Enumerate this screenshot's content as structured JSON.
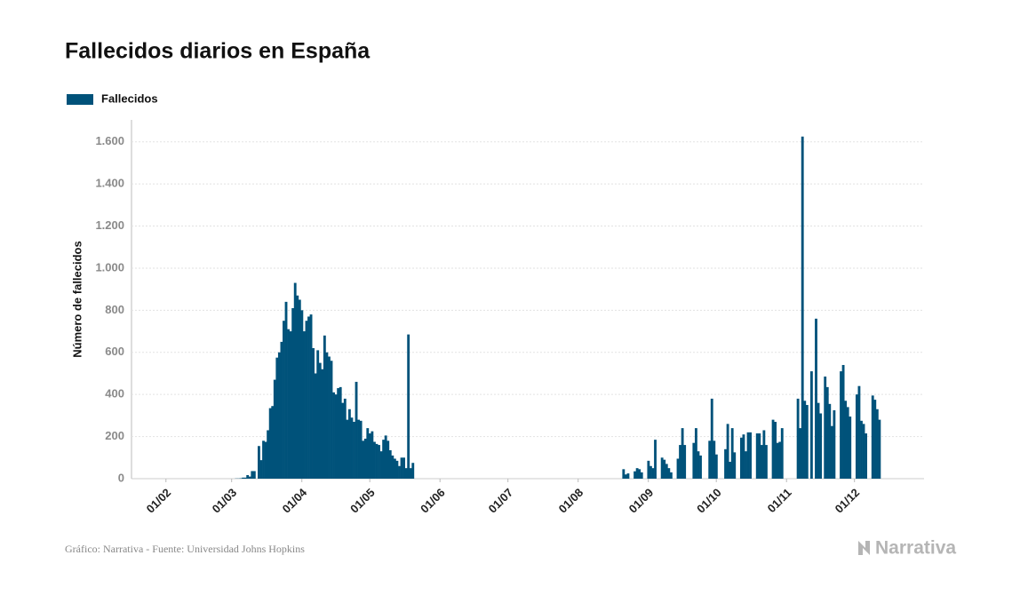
{
  "chart_data": {
    "type": "bar",
    "title": "Fallecidos diarios en España",
    "y_label": "Número de fallecidos",
    "source": "Gráfico: Narrativa - Fuente: Universidad Johns Hopkins",
    "brand": "Narrativa",
    "legend_position": "top-left",
    "grid": true,
    "ylim": [
      0,
      1700
    ],
    "yticks": [
      0,
      200,
      400,
      600,
      800,
      {
        "value": 1000,
        "label": "1.000"
      },
      {
        "value": 1200,
        "label": "1.200"
      },
      {
        "value": 1400,
        "label": "1.400"
      },
      {
        "value": 1600,
        "label": "1.600"
      }
    ],
    "categories": [
      null,
      null,
      null,
      null,
      null,
      null,
      null,
      null,
      null,
      null,
      "01/02",
      null,
      null,
      null,
      null,
      null,
      null,
      null,
      null,
      null,
      null,
      null,
      null,
      null,
      null,
      null,
      null,
      null,
      null,
      null,
      null,
      null,
      null,
      null,
      null,
      null,
      null,
      null,
      null,
      "01/03",
      null,
      null,
      null,
      null,
      null,
      null,
      null,
      null,
      null,
      null,
      null,
      null,
      null,
      null,
      null,
      null,
      null,
      null,
      null,
      null,
      null,
      null,
      null,
      null,
      null,
      null,
      null,
      null,
      null,
      null,
      "01/04",
      null,
      null,
      null,
      null,
      null,
      null,
      null,
      null,
      null,
      null,
      null,
      null,
      null,
      null,
      null,
      null,
      null,
      null,
      null,
      null,
      null,
      null,
      null,
      null,
      null,
      null,
      null,
      null,
      null,
      "01/05",
      null,
      null,
      null,
      null,
      null,
      null,
      null,
      null,
      null,
      null,
      null,
      null,
      null,
      null,
      null,
      null,
      null,
      null,
      null,
      null,
      null,
      null,
      null,
      null,
      null,
      null,
      null,
      null,
      null,
      null,
      "01/06",
      null,
      null,
      null,
      null,
      null,
      null,
      null,
      null,
      null,
      null,
      null,
      null,
      null,
      null,
      null,
      null,
      null,
      null,
      null,
      null,
      null,
      null,
      null,
      null,
      null,
      null,
      null,
      null,
      null,
      "01/07",
      null,
      null,
      null,
      null,
      null,
      null,
      null,
      null,
      null,
      null,
      null,
      null,
      null,
      null,
      null,
      null,
      null,
      null,
      null,
      null,
      null,
      null,
      null,
      null,
      null,
      null,
      null,
      null,
      null,
      null,
      "01/08",
      null,
      null,
      null,
      null,
      null,
      null,
      null,
      null,
      null,
      null,
      null,
      null,
      null,
      null,
      null,
      null,
      null,
      null,
      null,
      null,
      null,
      null,
      null,
      null,
      null,
      null,
      null,
      null,
      null,
      null,
      "01/09",
      null,
      null,
      null,
      null,
      null,
      null,
      null,
      null,
      null,
      null,
      null,
      null,
      null,
      null,
      null,
      null,
      null,
      null,
      null,
      null,
      null,
      null,
      null,
      null,
      null,
      null,
      null,
      null,
      null,
      "01/10",
      null,
      null,
      null,
      null,
      null,
      null,
      null,
      null,
      null,
      null,
      null,
      null,
      null,
      null,
      null,
      null,
      null,
      null,
      null,
      null,
      null,
      null,
      null,
      null,
      null,
      null,
      null,
      null,
      null,
      null,
      "01/11",
      null,
      null,
      null,
      null,
      null,
      null,
      null,
      null,
      null,
      null,
      null,
      null,
      null,
      null,
      null,
      null,
      null,
      null,
      null,
      null,
      null,
      null,
      null,
      null,
      null,
      null,
      null,
      null,
      null,
      "01/12",
      null,
      null,
      null,
      null,
      null,
      null,
      null,
      null,
      null,
      null,
      null
    ],
    "series": [
      {
        "name": "Fallecidos",
        "color": "#00527a",
        "values": [
          0,
          0,
          0,
          0,
          0,
          0,
          0,
          0,
          0,
          0,
          0,
          0,
          0,
          0,
          0,
          0,
          0,
          0,
          0,
          0,
          0,
          0,
          0,
          0,
          0,
          0,
          0,
          0,
          0,
          0,
          0,
          0,
          0,
          0,
          0,
          0,
          0,
          0,
          0,
          0,
          0,
          1,
          1,
          2,
          5,
          5,
          17,
          10,
          36,
          36,
          0,
          155,
          88,
          180,
          175,
          230,
          335,
          345,
          470,
          575,
          600,
          650,
          750,
          840,
          710,
          700,
          810,
          930,
          870,
          850,
          800,
          700,
          750,
          770,
          780,
          620,
          500,
          610,
          550,
          520,
          680,
          600,
          580,
          560,
          410,
          400,
          430,
          435,
          360,
          380,
          280,
          330,
          290,
          270,
          460,
          280,
          275,
          180,
          190,
          240,
          215,
          225,
          175,
          165,
          160,
          130,
          185,
          205,
          180,
          135,
          110,
          95,
          85,
          60,
          100,
          100,
          50,
          685,
          50,
          75,
          0,
          0,
          0,
          0,
          0,
          0,
          0,
          0,
          0,
          0,
          0,
          0,
          0,
          0,
          0,
          0,
          0,
          0,
          0,
          0,
          0,
          0,
          0,
          0,
          0,
          0,
          0,
          0,
          0,
          0,
          0,
          0,
          0,
          0,
          0,
          0,
          0,
          0,
          0,
          0,
          0,
          0,
          0,
          0,
          0,
          0,
          0,
          0,
          0,
          0,
          0,
          0,
          0,
          0,
          0,
          0,
          0,
          0,
          0,
          0,
          0,
          0,
          0,
          0,
          0,
          0,
          0,
          0,
          0,
          0,
          0,
          0,
          0,
          0,
          0,
          0,
          0,
          0,
          0,
          0,
          0,
          0,
          0,
          0,
          0,
          0,
          0,
          0,
          0,
          0,
          0,
          0,
          45,
          20,
          25,
          0,
          0,
          35,
          50,
          45,
          30,
          0,
          0,
          85,
          60,
          50,
          185,
          0,
          0,
          100,
          90,
          70,
          50,
          30,
          0,
          0,
          95,
          160,
          240,
          160,
          0,
          0,
          0,
          170,
          240,
          130,
          110,
          0,
          0,
          0,
          180,
          380,
          180,
          115,
          0,
          0,
          0,
          140,
          260,
          80,
          240,
          125,
          0,
          0,
          195,
          210,
          130,
          220,
          220,
          0,
          0,
          215,
          215,
          160,
          230,
          160,
          0,
          0,
          280,
          270,
          170,
          175,
          240,
          0,
          0,
          0,
          0,
          0,
          0,
          380,
          240,
          1625,
          370,
          350,
          0,
          510,
          0,
          760,
          360,
          310,
          0,
          485,
          435,
          355,
          250,
          325,
          0,
          0,
          510,
          540,
          370,
          340,
          295,
          0,
          0,
          400,
          440,
          275,
          260,
          215,
          0,
          0,
          395,
          375,
          330,
          280
        ]
      }
    ]
  }
}
